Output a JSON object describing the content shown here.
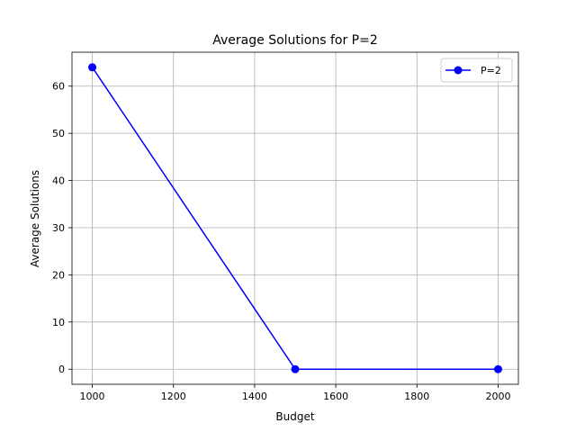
{
  "chart_data": {
    "type": "line",
    "title": "Average Solutions for P=2",
    "xlabel": "Budget",
    "ylabel": "Average Solutions",
    "x": [
      1000,
      1500,
      2000
    ],
    "series": [
      {
        "name": "P=2",
        "values": [
          64,
          0,
          0
        ],
        "color": "#0000ff",
        "marker": "circle"
      }
    ],
    "xlim": [
      950,
      2050
    ],
    "ylim": [
      -3.2,
      67.2
    ],
    "xticks": [
      1000,
      1200,
      1400,
      1600,
      1800,
      2000
    ],
    "yticks": [
      0,
      10,
      20,
      30,
      40,
      50,
      60
    ],
    "grid": true,
    "legend_position": "top-right"
  }
}
